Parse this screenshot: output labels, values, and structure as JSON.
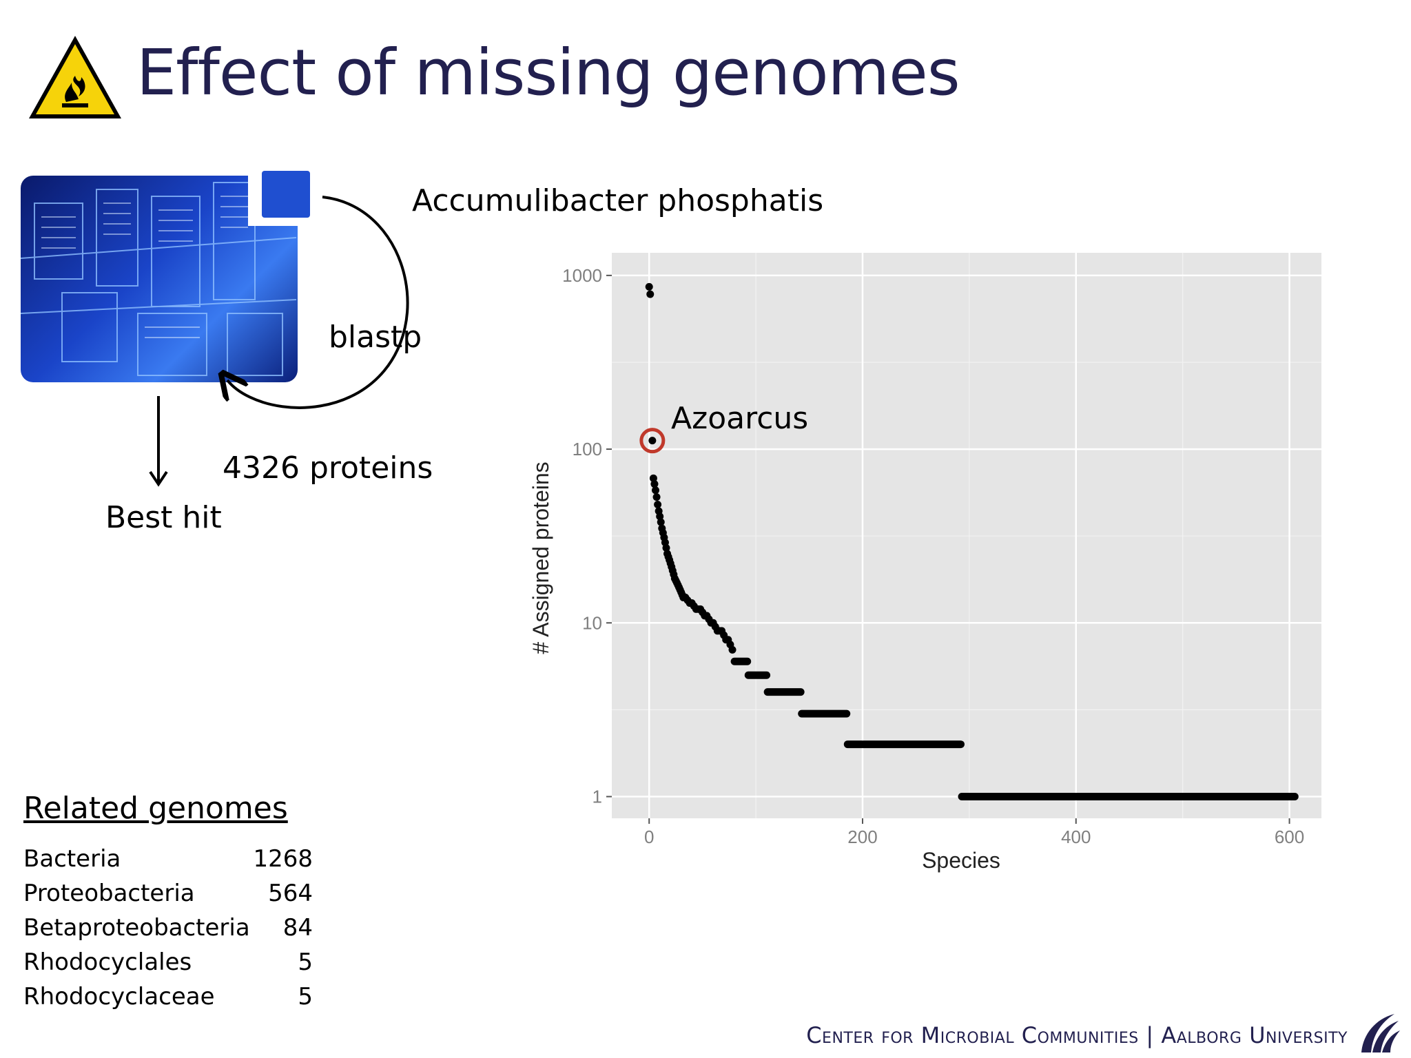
{
  "slide": {
    "title": "Effect of missing genomes",
    "warning_icon": "fire-hazard-warning-icon",
    "organism_label": "Accumulibacter phosphatis",
    "blastp_label": "blastp",
    "proteins_label": "4326 proteins",
    "best_hit_label": "Best hit",
    "database_image": "database-schema-image",
    "related_genomes": {
      "title": "Related genomes",
      "rows": [
        {
          "name": "Bacteria",
          "count": "1268"
        },
        {
          "name": "Proteobacteria",
          "count": "564"
        },
        {
          "name": "Betaproteobacteria",
          "count": "84"
        },
        {
          "name": "Rhodocyclales",
          "count": "5"
        },
        {
          "name": "Rhodocyclaceae",
          "count": "5"
        }
      ]
    },
    "footer": "Center for Microbial Communities | Aalborg University",
    "logo": "aalborg-university-logo-icon"
  },
  "chart_data": {
    "type": "scatter",
    "title": "",
    "xlabel": "Species",
    "ylabel": "# Assigned proteins",
    "xlim": [
      -35,
      630
    ],
    "ylim": [
      0.75,
      1350
    ],
    "yscale": "log",
    "xticks": [
      0,
      200,
      400,
      600
    ],
    "yticks": [
      1,
      10,
      100,
      1000
    ],
    "xtick_labels": [
      "0",
      "200",
      "400",
      "600"
    ],
    "ytick_labels": [
      "1",
      "10",
      "100",
      "1000"
    ],
    "grid": true,
    "panel_color": "#e5e5e5",
    "highlight": {
      "x": 3,
      "y": 112,
      "label": "Azoarcus",
      "color": "#c0392b"
    },
    "points": [
      [
        0,
        860
      ],
      [
        1,
        780
      ],
      [
        3,
        112
      ],
      [
        4,
        68
      ],
      [
        5,
        63
      ],
      [
        6,
        58
      ],
      [
        7,
        53
      ],
      [
        8,
        48
      ],
      [
        9,
        44
      ],
      [
        10,
        41
      ],
      [
        11,
        38
      ],
      [
        12,
        35
      ],
      [
        13,
        33
      ],
      [
        14,
        31
      ],
      [
        15,
        29
      ],
      [
        16,
        27
      ],
      [
        17,
        25
      ],
      [
        18,
        24
      ],
      [
        19,
        23
      ],
      [
        20,
        22
      ],
      [
        21,
        21
      ],
      [
        22,
        20
      ],
      [
        23,
        19
      ],
      [
        24,
        18
      ],
      [
        25,
        17.5
      ],
      [
        26,
        17
      ],
      [
        27,
        16.5
      ],
      [
        28,
        16
      ],
      [
        29,
        15.5
      ],
      [
        30,
        15
      ],
      [
        31,
        14.5
      ],
      [
        32,
        14
      ],
      [
        34,
        14
      ],
      [
        36,
        13.5
      ],
      [
        38,
        13
      ],
      [
        40,
        13
      ],
      [
        42,
        12.5
      ],
      [
        44,
        12
      ],
      [
        46,
        12
      ],
      [
        48,
        12
      ],
      [
        50,
        11.5
      ],
      [
        52,
        11
      ],
      [
        54,
        11
      ],
      [
        56,
        10.5
      ],
      [
        58,
        10
      ],
      [
        60,
        10
      ],
      [
        62,
        9.5
      ],
      [
        64,
        9
      ],
      [
        66,
        9
      ],
      [
        68,
        9
      ],
      [
        70,
        8.5
      ],
      [
        72,
        8
      ],
      [
        74,
        8
      ],
      [
        76,
        7.5
      ],
      [
        78,
        7
      ]
    ],
    "runs": [
      {
        "y": 6,
        "x0": 80,
        "x1": 92
      },
      {
        "y": 5,
        "x0": 93,
        "x1": 110
      },
      {
        "y": 4,
        "x0": 111,
        "x1": 142
      },
      {
        "y": 3,
        "x0": 143,
        "x1": 185
      },
      {
        "y": 2,
        "x0": 186,
        "x1": 292
      },
      {
        "y": 1,
        "x0": 293,
        "x1": 605
      }
    ]
  }
}
